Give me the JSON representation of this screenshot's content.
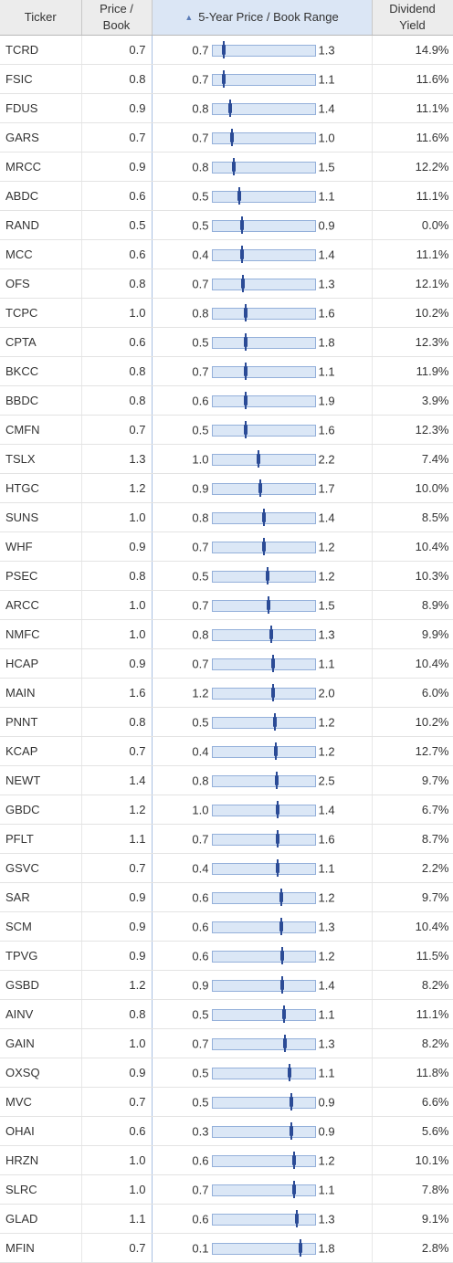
{
  "header": {
    "ticker": "Ticker",
    "price_book_1": "Price /",
    "price_book_2": "Book",
    "range": "5-Year Price / Book Range",
    "range_sort_icon": "sort-ascending-icon",
    "yield_1": "Dividend",
    "yield_2": "Yield"
  },
  "colors": {
    "bar_fill": "#dbe7f6",
    "bar_border": "#94b0da",
    "marker": "#2b4b96",
    "sorted_header": "#dbe6f5"
  },
  "rows": [
    {
      "ticker": "TCRD",
      "pb": "0.7",
      "low": "0.7",
      "high": "1.3",
      "pos": 0.11,
      "yield": "14.9%"
    },
    {
      "ticker": "FSIC",
      "pb": "0.8",
      "low": "0.7",
      "high": "1.1",
      "pos": 0.11,
      "yield": "11.6%"
    },
    {
      "ticker": "FDUS",
      "pb": "0.9",
      "low": "0.8",
      "high": "1.4",
      "pos": 0.17,
      "yield": "11.1%"
    },
    {
      "ticker": "GARS",
      "pb": "0.7",
      "low": "0.7",
      "high": "1.0",
      "pos": 0.19,
      "yield": "11.6%"
    },
    {
      "ticker": "MRCC",
      "pb": "0.9",
      "low": "0.8",
      "high": "1.5",
      "pos": 0.21,
      "yield": "12.2%"
    },
    {
      "ticker": "ABDC",
      "pb": "0.6",
      "low": "0.5",
      "high": "1.1",
      "pos": 0.26,
      "yield": "11.1%"
    },
    {
      "ticker": "RAND",
      "pb": "0.5",
      "low": "0.5",
      "high": "0.9",
      "pos": 0.29,
      "yield": "0.0%"
    },
    {
      "ticker": "MCC",
      "pb": "0.6",
      "low": "0.4",
      "high": "1.4",
      "pos": 0.29,
      "yield": "11.1%"
    },
    {
      "ticker": "OFS",
      "pb": "0.8",
      "low": "0.7",
      "high": "1.3",
      "pos": 0.3,
      "yield": "12.1%"
    },
    {
      "ticker": "TCPC",
      "pb": "1.0",
      "low": "0.8",
      "high": "1.6",
      "pos": 0.33,
      "yield": "10.2%"
    },
    {
      "ticker": "CPTA",
      "pb": "0.6",
      "low": "0.5",
      "high": "1.8",
      "pos": 0.33,
      "yield": "12.3%"
    },
    {
      "ticker": "BKCC",
      "pb": "0.8",
      "low": "0.7",
      "high": "1.1",
      "pos": 0.33,
      "yield": "11.9%"
    },
    {
      "ticker": "BBDC",
      "pb": "0.8",
      "low": "0.6",
      "high": "1.9",
      "pos": 0.33,
      "yield": "3.9%"
    },
    {
      "ticker": "CMFN",
      "pb": "0.7",
      "low": "0.5",
      "high": "1.6",
      "pos": 0.33,
      "yield": "12.3%"
    },
    {
      "ticker": "TSLX",
      "pb": "1.3",
      "low": "1.0",
      "high": "2.2",
      "pos": 0.45,
      "yield": "7.4%"
    },
    {
      "ticker": "HTGC",
      "pb": "1.2",
      "low": "0.9",
      "high": "1.7",
      "pos": 0.47,
      "yield": "10.0%"
    },
    {
      "ticker": "SUNS",
      "pb": "1.0",
      "low": "0.8",
      "high": "1.4",
      "pos": 0.5,
      "yield": "8.5%"
    },
    {
      "ticker": "WHF",
      "pb": "0.9",
      "low": "0.7",
      "high": "1.2",
      "pos": 0.5,
      "yield": "10.4%"
    },
    {
      "ticker": "PSEC",
      "pb": "0.8",
      "low": "0.5",
      "high": "1.2",
      "pos": 0.54,
      "yield": "10.3%"
    },
    {
      "ticker": "ARCC",
      "pb": "1.0",
      "low": "0.7",
      "high": "1.5",
      "pos": 0.55,
      "yield": "8.9%"
    },
    {
      "ticker": "NMFC",
      "pb": "1.0",
      "low": "0.8",
      "high": "1.3",
      "pos": 0.58,
      "yield": "9.9%"
    },
    {
      "ticker": "HCAP",
      "pb": "0.9",
      "low": "0.7",
      "high": "1.1",
      "pos": 0.59,
      "yield": "10.4%"
    },
    {
      "ticker": "MAIN",
      "pb": "1.6",
      "low": "1.2",
      "high": "2.0",
      "pos": 0.59,
      "yield": "6.0%"
    },
    {
      "ticker": "PNNT",
      "pb": "0.8",
      "low": "0.5",
      "high": "1.2",
      "pos": 0.61,
      "yield": "10.2%"
    },
    {
      "ticker": "KCAP",
      "pb": "0.7",
      "low": "0.4",
      "high": "1.2",
      "pos": 0.62,
      "yield": "12.7%"
    },
    {
      "ticker": "NEWT",
      "pb": "1.4",
      "low": "0.8",
      "high": "2.5",
      "pos": 0.63,
      "yield": "9.7%"
    },
    {
      "ticker": "GBDC",
      "pb": "1.2",
      "low": "1.0",
      "high": "1.4",
      "pos": 0.64,
      "yield": "6.7%"
    },
    {
      "ticker": "PFLT",
      "pb": "1.1",
      "low": "0.7",
      "high": "1.6",
      "pos": 0.64,
      "yield": "8.7%"
    },
    {
      "ticker": "GSVC",
      "pb": "0.7",
      "low": "0.4",
      "high": "1.1",
      "pos": 0.64,
      "yield": "2.2%"
    },
    {
      "ticker": "SAR",
      "pb": "0.9",
      "low": "0.6",
      "high": "1.2",
      "pos": 0.67,
      "yield": "9.7%"
    },
    {
      "ticker": "SCM",
      "pb": "0.9",
      "low": "0.6",
      "high": "1.3",
      "pos": 0.67,
      "yield": "10.4%"
    },
    {
      "ticker": "TPVG",
      "pb": "0.9",
      "low": "0.6",
      "high": "1.2",
      "pos": 0.68,
      "yield": "11.5%"
    },
    {
      "ticker": "GSBD",
      "pb": "1.2",
      "low": "0.9",
      "high": "1.4",
      "pos": 0.68,
      "yield": "8.2%"
    },
    {
      "ticker": "AINV",
      "pb": "0.8",
      "low": "0.5",
      "high": "1.1",
      "pos": 0.7,
      "yield": "11.1%"
    },
    {
      "ticker": "GAIN",
      "pb": "1.0",
      "low": "0.7",
      "high": "1.3",
      "pos": 0.71,
      "yield": "8.2%"
    },
    {
      "ticker": "OXSQ",
      "pb": "0.9",
      "low": "0.5",
      "high": "1.1",
      "pos": 0.75,
      "yield": "11.8%"
    },
    {
      "ticker": "MVC",
      "pb": "0.7",
      "low": "0.5",
      "high": "0.9",
      "pos": 0.77,
      "yield": "6.6%"
    },
    {
      "ticker": "OHAI",
      "pb": "0.6",
      "low": "0.3",
      "high": "0.9",
      "pos": 0.77,
      "yield": "5.6%"
    },
    {
      "ticker": "HRZN",
      "pb": "1.0",
      "low": "0.6",
      "high": "1.2",
      "pos": 0.8,
      "yield": "10.1%"
    },
    {
      "ticker": "SLRC",
      "pb": "1.0",
      "low": "0.7",
      "high": "1.1",
      "pos": 0.8,
      "yield": "7.8%"
    },
    {
      "ticker": "GLAD",
      "pb": "1.1",
      "low": "0.6",
      "high": "1.3",
      "pos": 0.83,
      "yield": "9.1%"
    },
    {
      "ticker": "MFIN",
      "pb": "0.7",
      "low": "0.1",
      "high": "1.8",
      "pos": 0.86,
      "yield": "2.8%"
    }
  ]
}
